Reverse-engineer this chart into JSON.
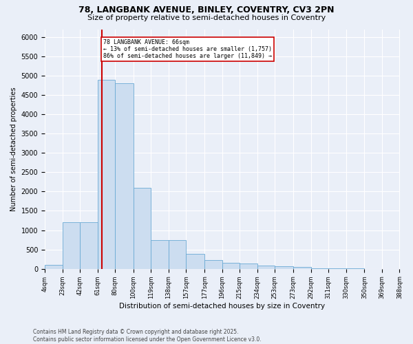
{
  "title_line1": "78, LANGBANK AVENUE, BINLEY, COVENTRY, CV3 2PN",
  "title_line2": "Size of property relative to semi-detached houses in Coventry",
  "xlabel": "Distribution of semi-detached houses by size in Coventry",
  "ylabel": "Number of semi-detached properties",
  "annotation_text_line1": "78 LANGBANK AVENUE: 66sqm",
  "annotation_text_line2": "← 13% of semi-detached houses are smaller (1,757)",
  "annotation_text_line3": "86% of semi-detached houses are larger (11,849) →",
  "bin_edges": [
    4,
    23,
    42,
    61,
    80,
    100,
    119,
    138,
    157,
    177,
    196,
    215,
    234,
    253,
    273,
    292,
    311,
    330,
    350,
    369,
    388
  ],
  "bin_labels": [
    "4sqm",
    "23sqm",
    "42sqm",
    "61sqm",
    "80sqm",
    "100sqm",
    "119sqm",
    "138sqm",
    "157sqm",
    "177sqm",
    "196sqm",
    "215sqm",
    "234sqm",
    "253sqm",
    "273sqm",
    "292sqm",
    "311sqm",
    "330sqm",
    "350sqm",
    "369sqm",
    "388sqm"
  ],
  "bar_heights": [
    100,
    1200,
    1200,
    4900,
    4800,
    2100,
    750,
    750,
    380,
    220,
    160,
    140,
    90,
    75,
    45,
    20,
    8,
    4,
    2,
    1
  ],
  "bar_color": "#ccddf0",
  "bar_edge_color": "#6aaad4",
  "vline_color": "#cc0000",
  "vline_x": 66,
  "annotation_box_color": "#cc0000",
  "ylim": [
    0,
    6200
  ],
  "yticks": [
    0,
    500,
    1000,
    1500,
    2000,
    2500,
    3000,
    3500,
    4000,
    4500,
    5000,
    5500,
    6000
  ],
  "background_color": "#eaeff8",
  "grid_color": "#ffffff",
  "footer_line1": "Contains HM Land Registry data © Crown copyright and database right 2025.",
  "footer_line2": "Contains public sector information licensed under the Open Government Licence v3.0."
}
